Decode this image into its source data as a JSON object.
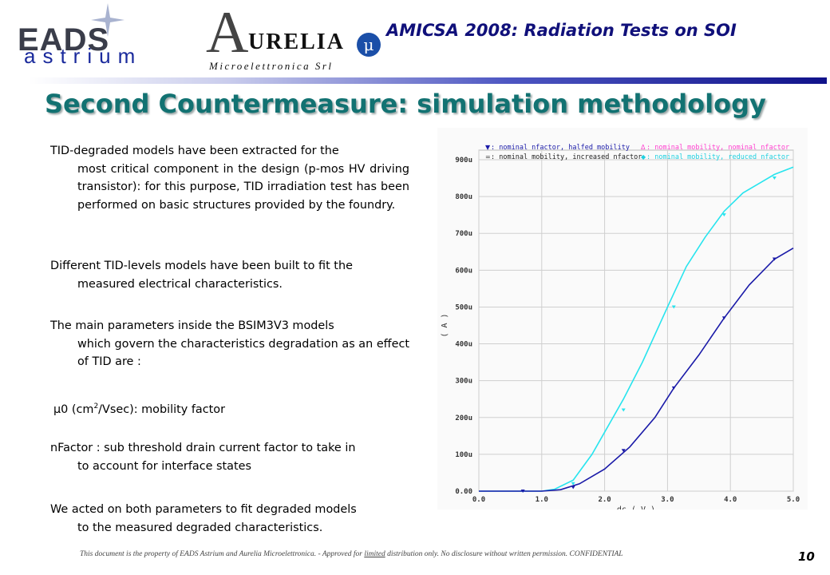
{
  "header": {
    "logo_eads": "EADS",
    "logo_astrium": "astrium",
    "logo_aurelia_A": "A",
    "logo_aurelia_name": "URELIA",
    "logo_aurelia_sub": "Microelettronica Srl",
    "title": "AMICSA 2008: Radiation Tests on SOI"
  },
  "page_title": "Second Countermeasure: simulation methodology",
  "paragraphs": [
    {
      "first": "TID-degraded models have been extracted for the",
      "rest": "most critical component in the design (p-mos HV driving transistor): for this purpose, TID irradiation test has been performed on basic structures provided by the foundry."
    },
    {
      "first": "Different TID-levels models have been built to fit the",
      "rest": "measured electrical characteristics."
    },
    {
      "first": "The main parameters inside the BSIM3V3 models",
      "rest": "which govern the characteristics degradation as an effect of TID are :"
    },
    {
      "mu_prefix": "μ0 (cm",
      "mu_sup": "2",
      "mu_suffix": "/Vsec): mobility factor"
    },
    {
      "first": "nFactor : sub threshold drain current factor to take in",
      "rest": "to account for interface states"
    },
    {
      "first": "We acted on both parameters to fit degraded models",
      "rest": "to the measured degraded characteristics."
    }
  ],
  "chart_data": {
    "type": "line",
    "xlabel": "dc ( V )",
    "ylabel": "( A )",
    "xlim": [
      0,
      5
    ],
    "ylim": [
      0,
      0.0009
    ],
    "x_ticks": [
      "0.0",
      "1.0",
      "2.0",
      "3.0",
      "4.0",
      "5.0"
    ],
    "y_ticks": [
      "0.00",
      "100u",
      "200u",
      "300u",
      "400u",
      "500u",
      "600u",
      "700u",
      "800u",
      "900u"
    ],
    "legend": [
      {
        "label": ": nominal nfactor, halfed mobility",
        "color": "#1a1aa8",
        "marker": "▼"
      },
      {
        "label": ": nominal mobility, increased nfactor",
        "color": "#222222",
        "marker": "="
      },
      {
        "label": ": nominal mobility, nominal nfactor",
        "color": "#ff3fcf",
        "marker": "Δ"
      },
      {
        "label": ": nominal mobility, reduced nfactor",
        "color": "#20d0e0",
        "marker": "◆"
      }
    ],
    "series": [
      {
        "name": "cyan",
        "color": "#27e4ee",
        "x": [
          0,
          0.7,
          1.0,
          1.2,
          1.5,
          1.8,
          2.0,
          2.3,
          2.6,
          3.0,
          3.3,
          3.6,
          3.9,
          4.2,
          4.5,
          4.7,
          5.0
        ],
        "y": [
          0,
          0,
          0,
          5e-06,
          3e-05,
          0.0001,
          0.00016,
          0.00025,
          0.00035,
          0.0005,
          0.00061,
          0.00069,
          0.00076,
          0.00081,
          0.00084,
          0.00086,
          0.00088
        ],
        "marker_x": [
          0.7,
          1.5,
          2.3,
          3.1,
          3.9,
          4.7
        ],
        "marker_y": [
          0,
          2e-05,
          0.00022,
          0.0005,
          0.00075,
          0.00085
        ]
      },
      {
        "name": "blue",
        "color": "#1a1aa8",
        "x": [
          0,
          0.7,
          1.0,
          1.3,
          1.6,
          2.0,
          2.4,
          2.8,
          3.1,
          3.5,
          3.9,
          4.3,
          4.7,
          5.0
        ],
        "y": [
          0,
          0,
          0,
          4e-06,
          2e-05,
          6e-05,
          0.00012,
          0.0002,
          0.00028,
          0.00037,
          0.00047,
          0.00056,
          0.00063,
          0.00066
        ],
        "marker_x": [
          0.7,
          1.5,
          2.3,
          3.1,
          3.9,
          4.7
        ],
        "marker_y": [
          0,
          1e-05,
          0.00011,
          0.00028,
          0.00047,
          0.00063
        ]
      }
    ]
  },
  "footer": {
    "note_before": "This document is the property of EADS Astrium and Aurelia Microelettronica. - Approved for ",
    "note_underlined": "limited",
    "note_after": " distribution only. No disclosure without written permission. CONFIDENTIAL",
    "page_number": "10"
  }
}
